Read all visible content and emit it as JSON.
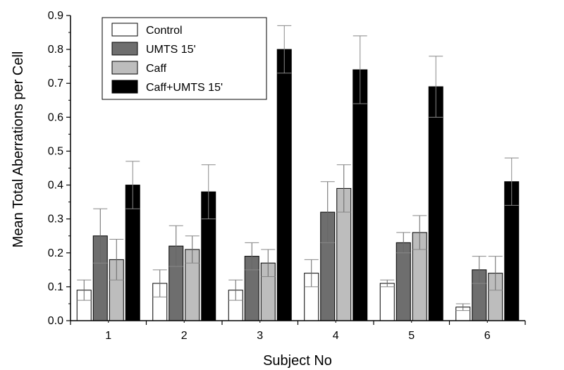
{
  "chart_data": {
    "type": "bar",
    "xlabel": "Subject No",
    "ylabel": "Mean Total Aberrations per Cell",
    "categories": [
      "1",
      "2",
      "3",
      "4",
      "5",
      "6"
    ],
    "ylim": [
      0,
      0.9
    ],
    "yticks": [
      "0.0",
      "0.1",
      "0.2",
      "0.3",
      "0.4",
      "0.5",
      "0.6",
      "0.7",
      "0.8",
      "0.9"
    ],
    "legend_position": "top-left",
    "grid": false,
    "series": [
      {
        "name": "Control",
        "color": "#ffffff",
        "values": [
          0.09,
          0.11,
          0.09,
          0.14,
          0.11,
          0.04
        ],
        "error": [
          0.03,
          0.04,
          0.03,
          0.04,
          0.01,
          0.01
        ]
      },
      {
        "name": "UMTS 15'",
        "color": "#6e6e6e",
        "values": [
          0.25,
          0.22,
          0.19,
          0.32,
          0.23,
          0.15
        ],
        "error": [
          0.08,
          0.06,
          0.04,
          0.09,
          0.03,
          0.04
        ]
      },
      {
        "name": "Caff",
        "color": "#bdbdbd",
        "values": [
          0.18,
          0.21,
          0.17,
          0.39,
          0.26,
          0.14
        ],
        "error": [
          0.06,
          0.04,
          0.04,
          0.07,
          0.05,
          0.05
        ]
      },
      {
        "name": "Caff+UMTS 15'",
        "color": "#000000",
        "values": [
          0.4,
          0.38,
          0.8,
          0.74,
          0.69,
          0.41
        ],
        "error": [
          0.07,
          0.08,
          0.07,
          0.1,
          0.09,
          0.07
        ]
      }
    ]
  }
}
